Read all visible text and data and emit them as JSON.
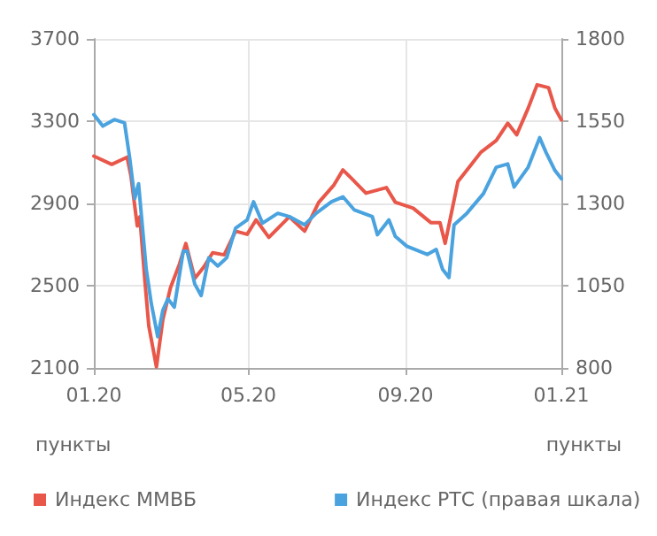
{
  "chart_data": {
    "type": "line",
    "ylabel": "пункты",
    "y2label": "пункты",
    "xlim": [
      "2020-01-01",
      "2021-01-01"
    ],
    "xticks": [
      {
        "value": "2020-01-01",
        "label": "01.20"
      },
      {
        "value": "2020-05-01",
        "label": "05.20"
      },
      {
        "value": "2020-09-01",
        "label": "09.20"
      },
      {
        "value": "2021-01-01",
        "label": "01.21"
      }
    ],
    "ylim": [
      2100,
      3700
    ],
    "yticks": [
      2100,
      2500,
      2900,
      3300,
      3700
    ],
    "y2lim": [
      800,
      1800
    ],
    "y2ticks": [
      800,
      1050,
      1300,
      1550,
      1800
    ],
    "grid": true,
    "legend": "bottom",
    "marker": "none",
    "line_style": "solid",
    "series": [
      {
        "name": "Индекс ММВБ",
        "color": "#e8574a",
        "x": [
          "2020-01-01",
          "2020-01-15",
          "2020-01-27",
          "2020-01-30",
          "2020-02-04",
          "2020-02-06",
          "2020-02-10",
          "2020-02-13",
          "2020-02-19",
          "2020-02-24",
          "2020-03-01",
          "2020-03-08",
          "2020-03-13",
          "2020-03-20",
          "2020-03-27",
          "2020-04-03",
          "2020-04-12",
          "2020-04-21",
          "2020-04-30",
          "2020-05-07",
          "2020-05-17",
          "2020-06-02",
          "2020-06-14",
          "2020-06-25",
          "2020-07-07",
          "2020-07-14",
          "2020-07-21",
          "2020-08-01",
          "2020-08-17",
          "2020-08-24",
          "2020-09-07",
          "2020-09-21",
          "2020-09-28",
          "2020-10-02",
          "2020-10-12",
          "2020-10-21",
          "2020-10-30",
          "2020-11-11",
          "2020-11-20",
          "2020-11-27",
          "2020-12-06",
          "2020-12-13",
          "2020-12-22",
          "2020-12-27",
          "2021-01-01"
        ],
        "values": [
          3130,
          3090,
          3125,
          3035,
          2790,
          2835,
          2520,
          2305,
          2105,
          2335,
          2490,
          2605,
          2705,
          2535,
          2590,
          2660,
          2650,
          2765,
          2750,
          2820,
          2735,
          2835,
          2765,
          2905,
          2990,
          3063,
          3020,
          2950,
          2977,
          2906,
          2877,
          2806,
          2806,
          2706,
          3006,
          3077,
          3149,
          3206,
          3290,
          3234,
          3363,
          3477,
          3463,
          3363,
          3306
        ]
      },
      {
        "name": "Индекс РТС (правая шкала)",
        "color": "#4aa3df",
        "axis": "y2",
        "x": [
          "2020-01-01",
          "2020-01-08",
          "2020-01-17",
          "2020-01-25",
          "2020-01-29",
          "2020-02-02",
          "2020-02-05",
          "2020-02-11",
          "2020-02-15",
          "2020-02-20",
          "2020-02-24",
          "2020-02-28",
          "2020-03-04",
          "2020-03-11",
          "2020-03-14",
          "2020-03-20",
          "2020-03-25",
          "2020-03-31",
          "2020-04-07",
          "2020-04-14",
          "2020-04-21",
          "2020-04-30",
          "2020-05-05",
          "2020-05-12",
          "2020-05-24",
          "2020-06-02",
          "2020-06-14",
          "2020-06-23",
          "2020-07-05",
          "2020-07-14",
          "2020-07-23",
          "2020-08-06",
          "2020-08-10",
          "2020-08-19",
          "2020-08-24",
          "2020-09-02",
          "2020-09-18",
          "2020-09-25",
          "2020-09-30",
          "2020-10-05",
          "2020-10-09",
          "2020-10-19",
          "2020-11-01",
          "2020-11-11",
          "2020-11-20",
          "2020-11-25",
          "2020-12-06",
          "2020-12-15",
          "2020-12-20",
          "2020-12-27",
          "2021-01-01"
        ],
        "values": [
          1570,
          1535,
          1555,
          1545,
          1440,
          1315,
          1360,
          1100,
          995,
          895,
          975,
          1010,
          985,
          1155,
          1155,
          1055,
          1020,
          1135,
          1110,
          1135,
          1225,
          1250,
          1305,
          1240,
          1270,
          1260,
          1235,
          1270,
          1305,
          1320,
          1280,
          1260,
          1205,
          1250,
          1200,
          1170,
          1145,
          1160,
          1100,
          1075,
          1235,
          1270,
          1330,
          1410,
          1420,
          1350,
          1410,
          1500,
          1455,
          1400,
          1375
        ]
      }
    ]
  }
}
